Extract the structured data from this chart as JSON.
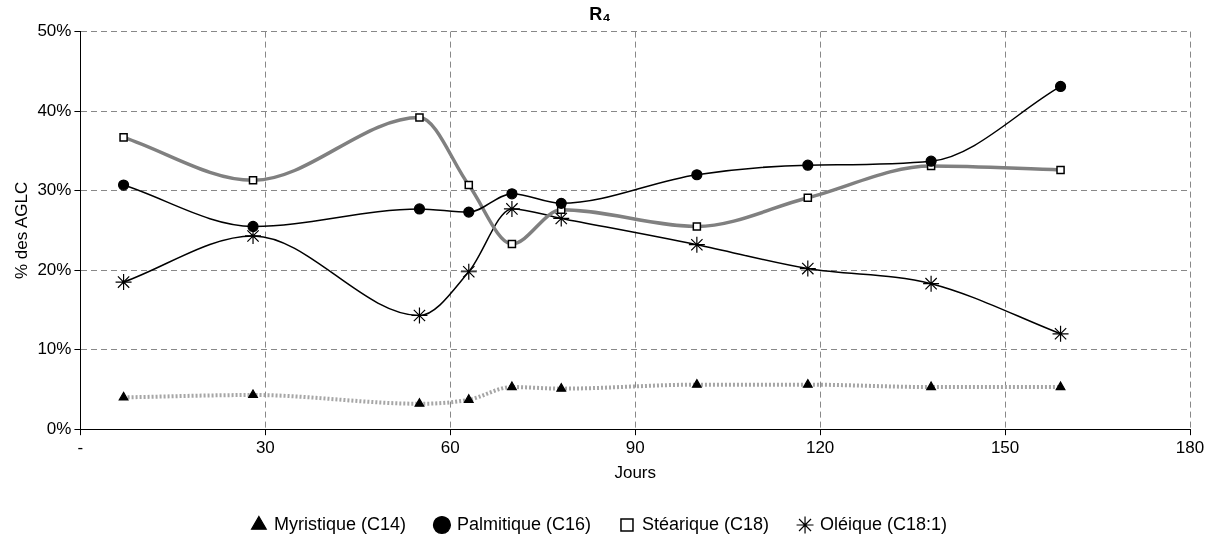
{
  "chart_data": {
    "type": "line",
    "title": "R₄",
    "xlabel": "Jours",
    "ylabel": "% des AGLC",
    "x": [
      7,
      28,
      55,
      63,
      70,
      78,
      100,
      118,
      138,
      159
    ],
    "xlim": [
      0,
      180
    ],
    "xticks": [
      {
        "value": 0,
        "label": "-"
      },
      30,
      60,
      90,
      120,
      150,
      180
    ],
    "ylim": [
      0,
      50
    ],
    "yticks": [
      {
        "value": 0,
        "label": "0%"
      },
      {
        "value": 10,
        "label": "10%"
      },
      {
        "value": 20,
        "label": "20%"
      },
      {
        "value": 30,
        "label": "30%"
      },
      {
        "value": 40,
        "label": "40%"
      },
      {
        "value": 50,
        "label": "50%"
      }
    ],
    "grid": true,
    "legend": "bottom",
    "series": [
      {
        "name": "Myristique (C14)",
        "color": "#a6a6a6",
        "marker": "triangle",
        "line_style": "dotted",
        "values": [
          4.0,
          4.3,
          3.2,
          3.7,
          5.3,
          5.1,
          5.6,
          5.6,
          5.3,
          5.3
        ]
      },
      {
        "name": "Palmitique (C16)",
        "color": "#000000",
        "marker": "circle",
        "line_style": "solid",
        "values": [
          30.7,
          25.5,
          27.7,
          27.3,
          29.6,
          28.4,
          32.0,
          33.2,
          33.7,
          43.1
        ]
      },
      {
        "name": "Stéarique (C18)",
        "color": "#808080",
        "marker": "square",
        "line_style": "solid",
        "values": [
          36.7,
          31.3,
          39.2,
          30.7,
          23.3,
          27.6,
          25.5,
          29.1,
          33.1,
          32.6
        ]
      },
      {
        "name": "Oléique (C18:1)",
        "color": "#000000",
        "marker": "cross",
        "line_style": "solid",
        "values": [
          18.5,
          24.3,
          14.3,
          19.8,
          27.7,
          26.5,
          23.2,
          20.2,
          18.3,
          12.0
        ]
      }
    ]
  }
}
